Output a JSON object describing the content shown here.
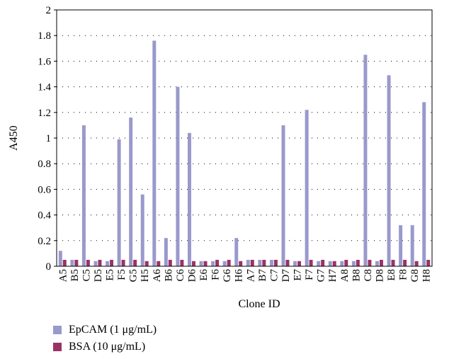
{
  "chart_data": {
    "type": "bar",
    "xlabel": "Clone ID",
    "ylabel": "A450",
    "ylim": [
      0,
      2
    ],
    "y_ticks": [
      "0",
      "0.2",
      "0.4",
      "0.6",
      "0.8",
      "1",
      "1.2",
      "1.4",
      "1.6",
      "1.8",
      "2"
    ],
    "grid": "horizontal dotted",
    "legend_position": "bottom-left",
    "categories": [
      "A5",
      "B5",
      "C5",
      "D5",
      "E5",
      "F5",
      "G5",
      "H5",
      "A6",
      "B6",
      "C6",
      "D6",
      "E6",
      "F6",
      "G6",
      "H6",
      "A7",
      "B7",
      "C7",
      "D7",
      "E7",
      "F7",
      "G7",
      "H7",
      "A8",
      "B8",
      "C8",
      "D8",
      "E8",
      "F8",
      "G8",
      "H8"
    ],
    "series": [
      {
        "name": "EpCAM (1 μg/mL)",
        "color": "#9999cc",
        "values": [
          0.12,
          0.05,
          1.1,
          0.04,
          0.04,
          0.99,
          1.16,
          0.56,
          1.76,
          0.22,
          1.4,
          1.04,
          0.04,
          0.04,
          0.04,
          0.22,
          0.05,
          0.05,
          0.05,
          1.1,
          0.04,
          1.22,
          0.04,
          0.04,
          0.04,
          0.04,
          1.65,
          0.04,
          1.49,
          0.32,
          0.32,
          1.28
        ]
      },
      {
        "name": "BSA (10 μg/mL)",
        "color": "#993366",
        "values": [
          0.05,
          0.05,
          0.05,
          0.05,
          0.05,
          0.05,
          0.05,
          0.04,
          0.04,
          0.05,
          0.05,
          0.04,
          0.04,
          0.05,
          0.05,
          0.04,
          0.05,
          0.05,
          0.05,
          0.05,
          0.04,
          0.05,
          0.05,
          0.04,
          0.05,
          0.05,
          0.05,
          0.05,
          0.05,
          0.05,
          0.04,
          0.05
        ]
      }
    ]
  }
}
